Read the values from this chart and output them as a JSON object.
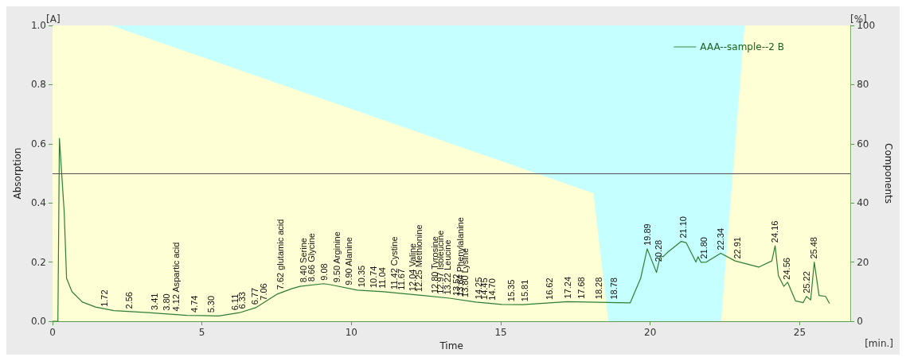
{
  "chart_data": {
    "type": "line",
    "xlabel": "Time",
    "ylabel": "Absorption",
    "y2label": "Components",
    "xlim": [
      0,
      26.7
    ],
    "xticks": [
      0,
      5,
      10,
      15,
      20,
      25
    ],
    "ylim": [
      0,
      1
    ],
    "yticks": [
      {
        "value": 0,
        "label": "0.0"
      },
      0.2,
      0.4,
      0.6,
      0.8,
      {
        "value": 1,
        "label": "1.0"
      }
    ],
    "y2lim": [
      0,
      100
    ],
    "y2ticks": [
      0,
      20,
      40,
      60,
      80,
      100
    ],
    "grid": false,
    "legend": "top right",
    "marker": "none",
    "line_style": "solid",
    "ref_lines": [
      {
        "axis": "y",
        "value": 0.5,
        "color": "#555555"
      }
    ],
    "series": [
      {
        "type": "area",
        "axis": "y2",
        "color": "#ffffd6",
        "x": [
          0,
          1.96,
          18.1,
          18.6,
          22.37,
          23.16,
          26.7
        ],
        "values": [
          100,
          100,
          43.3,
          0,
          0,
          100,
          100
        ]
      },
      {
        "name": "AAA--sample--2 B",
        "color": "#2e7d32",
        "x": [
          0,
          0.18,
          0.23,
          0.39,
          0.47,
          0.65,
          1.0,
          1.44,
          2.05,
          3.2,
          4.5,
          5.56,
          6.26,
          6.8,
          7.5,
          8.0,
          8.28,
          9.07,
          9.33,
          10.2,
          11.08,
          12.4,
          13.28,
          14.16,
          15.03,
          15.74,
          17.23,
          19.33,
          19.68,
          19.9,
          20.21,
          20.34,
          20.43,
          20.56,
          21.04,
          21.2,
          21.53,
          21.6,
          21.7,
          21.88,
          22.36,
          22.84,
          23.63,
          24.07,
          24.18,
          24.29,
          24.47,
          24.6,
          24.86,
          25.12,
          25.23,
          25.37,
          25.49,
          25.65,
          25.87,
          26.0
        ],
        "values": [
          0,
          0,
          0.618,
          0.369,
          0.145,
          0.1,
          0.065,
          0.048,
          0.036,
          0.029,
          0.02,
          0.018,
          0.029,
          0.046,
          0.091,
          0.11,
          0.118,
          0.127,
          0.123,
          0.105,
          0.1,
          0.087,
          0.078,
          0.065,
          0.057,
          0.056,
          0.066,
          0.062,
          0.145,
          0.245,
          0.165,
          0.221,
          0.218,
          0.231,
          0.27,
          0.266,
          0.2,
          0.218,
          0.199,
          0.2,
          0.23,
          0.204,
          0.183,
          0.204,
          0.255,
          0.154,
          0.118,
          0.132,
          0.069,
          0.063,
          0.084,
          0.072,
          0.2,
          0.087,
          0.084,
          0.06
        ]
      }
    ],
    "annotations": [
      "[A]",
      "[%]",
      "[min.]",
      {
        "text": "1.72",
        "x": 1.72,
        "y": 0.038
      },
      {
        "text": "2.56",
        "x": 2.56,
        "y": 0.031
      },
      {
        "text": "3.41",
        "x": 3.41,
        "y": 0.027
      },
      {
        "text": "3.80",
        "x": 3.8,
        "y": 0.025
      },
      {
        "text": "4.12 Aspartic acid",
        "x": 4.12,
        "y": 0.023
      },
      {
        "text": "4.74",
        "x": 4.74,
        "y": 0.019
      },
      {
        "text": "5.30",
        "x": 5.3,
        "y": 0.018
      },
      {
        "text": "6.11",
        "x": 6.11,
        "y": 0.026
      },
      {
        "text": "6.33",
        "x": 6.33,
        "y": 0.031
      },
      {
        "text": "6.77",
        "x": 6.77,
        "y": 0.045
      },
      {
        "text": "7.06",
        "x": 7.06,
        "y": 0.06
      },
      {
        "text": "7.62 glutamic acid",
        "x": 7.62,
        "y": 0.096
      },
      {
        "text": "8.40 Serine",
        "x": 8.4,
        "y": 0.12
      },
      {
        "text": "8.66 Glycine",
        "x": 8.66,
        "y": 0.123
      },
      {
        "text": "9.08",
        "x": 9.08,
        "y": 0.127
      },
      {
        "text": "9.50 Arginine",
        "x": 9.5,
        "y": 0.12
      },
      {
        "text": "9.90 Alanine",
        "x": 9.9,
        "y": 0.111
      },
      {
        "text": "10.35",
        "x": 10.35,
        "y": 0.104
      },
      {
        "text": "10.74",
        "x": 10.74,
        "y": 0.102
      },
      {
        "text": "11.04",
        "x": 11.04,
        "y": 0.1
      },
      {
        "text": "11.42 Cystine",
        "x": 11.42,
        "y": 0.097
      },
      {
        "text": "11.67",
        "x": 11.67,
        "y": 0.095
      },
      {
        "text": "12.04 Valine",
        "x": 12.04,
        "y": 0.091
      },
      {
        "text": "12.25 Methionine",
        "x": 12.25,
        "y": 0.089
      },
      {
        "text": "12.80 Tyrosine",
        "x": 12.8,
        "y": 0.083
      },
      {
        "text": "12.97 Isoleucine",
        "x": 12.97,
        "y": 0.081
      },
      {
        "text": "13.22 Leucine",
        "x": 13.22,
        "y": 0.079
      },
      {
        "text": "13.52",
        "x": 13.52,
        "y": 0.075
      },
      {
        "text": "13.64 Phenylalanine",
        "x": 13.64,
        "y": 0.073
      },
      {
        "text": "13.80 Lysine",
        "x": 13.8,
        "y": 0.07
      },
      {
        "text": "14.25",
        "x": 14.25,
        "y": 0.064
      },
      {
        "text": "14.45",
        "x": 14.45,
        "y": 0.062
      },
      {
        "text": "14.70",
        "x": 14.7,
        "y": 0.06
      },
      {
        "text": "15.35",
        "x": 15.35,
        "y": 0.056
      },
      {
        "text": "15.81",
        "x": 15.81,
        "y": 0.056
      },
      {
        "text": "16.62",
        "x": 16.62,
        "y": 0.062
      },
      {
        "text": "17.24",
        "x": 17.24,
        "y": 0.066
      },
      {
        "text": "17.68",
        "x": 17.68,
        "y": 0.065
      },
      {
        "text": "18.28",
        "x": 18.28,
        "y": 0.064
      },
      {
        "text": "18.78",
        "x": 18.78,
        "y": 0.063
      },
      {
        "text": "19.89",
        "x": 19.89,
        "y": 0.245
      },
      {
        "text": "20.28",
        "x": 20.28,
        "y": 0.19
      },
      {
        "text": "21.10",
        "x": 21.1,
        "y": 0.27
      },
      {
        "text": "21.80",
        "x": 21.8,
        "y": 0.2
      },
      {
        "text": "22.34",
        "x": 22.34,
        "y": 0.23
      },
      {
        "text": "22.91",
        "x": 22.91,
        "y": 0.2
      },
      {
        "text": "24.16",
        "x": 24.16,
        "y": 0.255
      },
      {
        "text": "24.56",
        "x": 24.56,
        "y": 0.13
      },
      {
        "text": "25.22",
        "x": 25.22,
        "y": 0.084
      },
      {
        "text": "25.48",
        "x": 25.48,
        "y": 0.2
      }
    ]
  }
}
